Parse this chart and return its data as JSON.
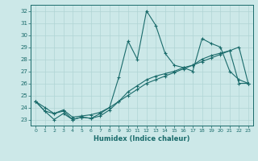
{
  "xlabel": "Humidex (Indice chaleur)",
  "xlim": [
    -0.5,
    23.5
  ],
  "ylim": [
    22.5,
    32.5
  ],
  "yticks": [
    23,
    24,
    25,
    26,
    27,
    28,
    29,
    30,
    31,
    32
  ],
  "xticks": [
    0,
    1,
    2,
    3,
    4,
    5,
    6,
    7,
    8,
    9,
    10,
    11,
    12,
    13,
    14,
    15,
    16,
    17,
    18,
    19,
    20,
    21,
    22,
    23
  ],
  "bg_color": "#cce8e8",
  "grid_color": "#b0d4d4",
  "line_color": "#1a6b6b",
  "line1_y": [
    24.5,
    23.7,
    23.0,
    23.5,
    23.0,
    23.2,
    23.1,
    23.5,
    24.0,
    26.5,
    29.5,
    28.0,
    32.0,
    30.8,
    28.5,
    27.5,
    27.3,
    27.0,
    29.7,
    29.3,
    29.0,
    27.0,
    26.3,
    26.0
  ],
  "line2_y": [
    24.5,
    23.7,
    23.5,
    23.7,
    23.0,
    23.2,
    23.1,
    23.3,
    23.8,
    24.5,
    25.3,
    25.8,
    26.3,
    26.6,
    26.8,
    27.0,
    27.3,
    27.5,
    28.0,
    28.3,
    28.5,
    28.7,
    26.0,
    26.0
  ],
  "line3_y": [
    24.5,
    24.0,
    23.5,
    23.8,
    23.2,
    23.3,
    23.4,
    23.6,
    24.0,
    24.5,
    25.0,
    25.5,
    26.0,
    26.3,
    26.6,
    26.9,
    27.2,
    27.5,
    27.8,
    28.1,
    28.4,
    28.7,
    29.0,
    26.0
  ]
}
